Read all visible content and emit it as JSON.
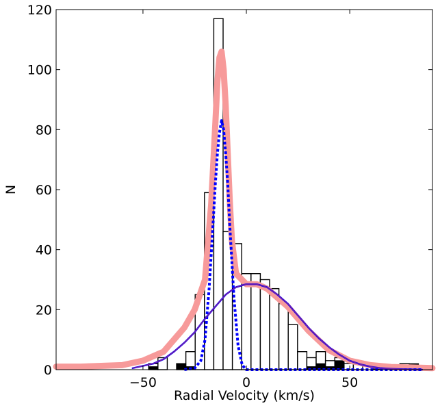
{
  "chart_data": {
    "type": "bar",
    "title": "",
    "xlabel": "Radial Velocity (km/s)",
    "ylabel": "N",
    "xlim": [
      -92,
      90
    ],
    "ylim": [
      0,
      120
    ],
    "grid": false,
    "legend": "none",
    "xticks": [
      -50,
      0,
      50
    ],
    "yticks": [
      0,
      20,
      40,
      60,
      80,
      100,
      120
    ],
    "bin_width": 4.5,
    "histogram_all": {
      "bin_centers": [
        -45,
        -40.5,
        -36,
        -31.5,
        -27,
        -22.5,
        -18,
        -13.5,
        -9,
        -4.5,
        0,
        4.5,
        9,
        13.5,
        18,
        22.5,
        27,
        31.5,
        36,
        40.5,
        45,
        49.5,
        54,
        58.5,
        63,
        67.5,
        72,
        76.5,
        81
      ],
      "values": [
        2,
        4,
        0,
        2,
        6,
        25,
        59,
        117,
        46,
        42,
        32,
        32,
        30,
        27,
        22,
        15,
        6,
        4,
        6,
        3,
        4,
        2,
        2,
        0,
        1,
        0,
        1,
        2,
        1
      ]
    },
    "histogram_filled": {
      "bin_centers": [
        -45,
        -31.5,
        -27,
        31.5,
        36,
        40.5,
        45,
        63,
        67.5,
        72,
        76.5,
        81
      ],
      "values": [
        1,
        2,
        1,
        1,
        2,
        1,
        3,
        1,
        1,
        1,
        1,
        2
      ]
    },
    "series": [
      {
        "style": "thick-light-red",
        "color": "#f79a9a",
        "x": [
          -92,
          -80,
          -60,
          -50,
          -40,
          -30,
          -25,
          -20,
          -17,
          -15,
          -14,
          -13,
          -12,
          -11,
          -10,
          -9,
          -8,
          -7,
          -5,
          0,
          5,
          10,
          20,
          30,
          40,
          50,
          60,
          70,
          80,
          90
        ],
        "y": [
          1,
          1,
          1.5,
          3,
          6,
          14,
          20,
          30,
          55,
          82,
          96,
          104,
          106,
          100,
          88,
          72,
          56,
          43,
          32,
          28.5,
          28.5,
          27,
          21,
          13,
          6.5,
          3,
          1.5,
          0.9,
          0.7,
          0.5
        ]
      },
      {
        "style": "solid-blue",
        "color": "#0000ff",
        "x": [
          -55,
          -45,
          -40,
          -35,
          -30,
          -25,
          -20,
          -15,
          -10,
          -5,
          0,
          5,
          10,
          15,
          20,
          25,
          30,
          35,
          40,
          45,
          50,
          55,
          60,
          65,
          70,
          75,
          80,
          85
        ],
        "y": [
          0.5,
          2,
          3.5,
          6,
          9,
          12.5,
          17,
          21,
          25,
          27.5,
          28.5,
          28.5,
          27.5,
          25,
          22,
          18,
          14,
          10.5,
          7.5,
          5,
          3,
          1.8,
          1,
          0.5,
          0.3,
          0.15,
          0.1,
          0
        ]
      },
      {
        "style": "dotted-blue",
        "color": "#0000ff",
        "x": [
          -30,
          -25,
          -22,
          -20,
          -18,
          -16,
          -15,
          -14,
          -13,
          -12,
          -11,
          -10,
          -9,
          -8,
          -6,
          -4,
          -2,
          0,
          5,
          10,
          20,
          30,
          40,
          50,
          60,
          70,
          80,
          85
        ],
        "y": [
          0,
          0.5,
          3,
          10,
          27,
          50,
          62,
          72,
          79,
          83,
          80,
          72,
          62,
          48,
          24,
          8,
          1.5,
          0,
          0,
          0,
          0,
          0,
          0,
          0,
          0,
          0,
          0,
          0
        ]
      },
      {
        "style": "thin-purple",
        "color": "#7b1fa2",
        "x": [
          -55,
          -45,
          -40,
          -35,
          -30,
          -25,
          -20,
          -15,
          -10,
          -5,
          0,
          5,
          10,
          15,
          20,
          25,
          30,
          35,
          40,
          45,
          50,
          55,
          60,
          65,
          70,
          75,
          80,
          85
        ],
        "y": [
          0.5,
          2,
          3.5,
          6,
          9,
          12.5,
          17,
          21,
          25,
          27.5,
          28.5,
          28.5,
          27.5,
          25,
          22,
          18,
          14,
          10.5,
          7.5,
          5,
          3,
          1.8,
          1,
          0.5,
          0.3,
          0.15,
          0.1,
          0
        ]
      }
    ]
  }
}
